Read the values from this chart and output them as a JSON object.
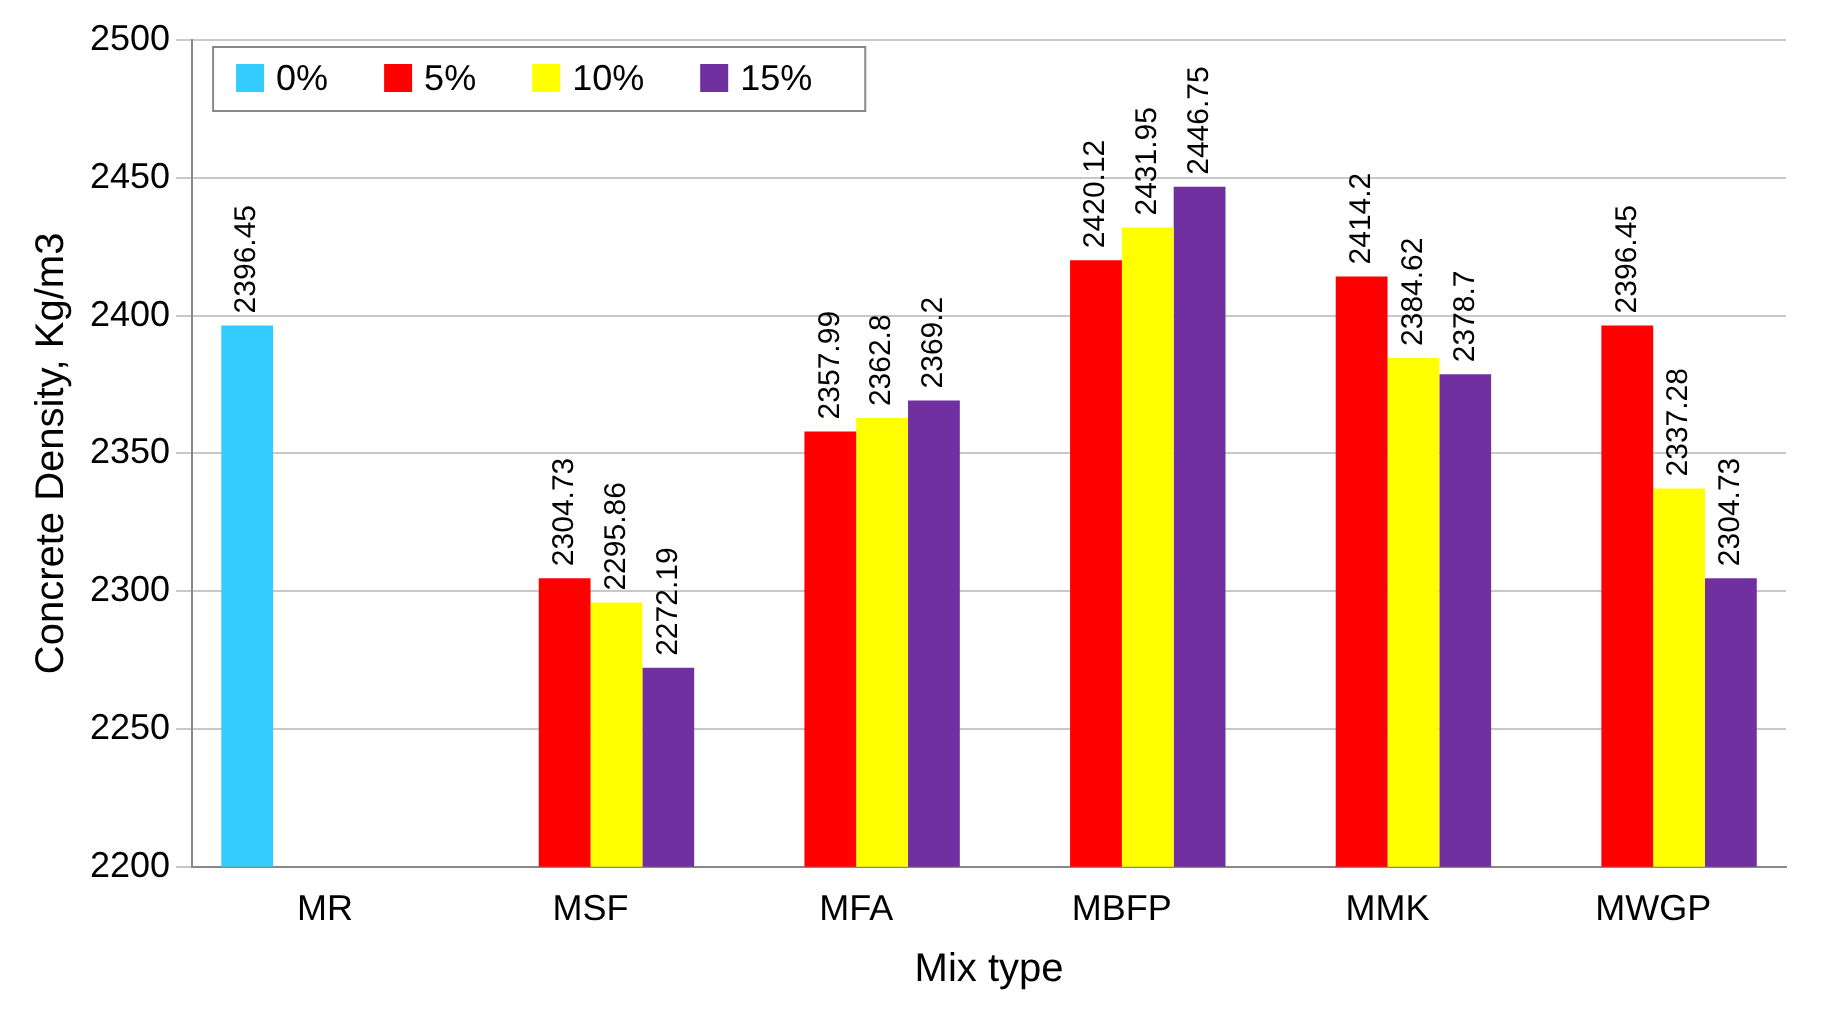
{
  "chart_data": {
    "type": "bar",
    "xlabel": "Mix type",
    "ylabel": "Concrete Density, Kg/m3",
    "categories": [
      "MR",
      "MSF",
      "MFA",
      "MBFP",
      "MMK",
      "MWGP"
    ],
    "series": [
      {
        "name": "0%",
        "color": "#33ccff",
        "values": [
          2396.45,
          null,
          null,
          null,
          null,
          null
        ]
      },
      {
        "name": "5%",
        "color": "#ff0000",
        "values": [
          null,
          2304.73,
          2357.99,
          2420.12,
          2414.2,
          2396.45
        ]
      },
      {
        "name": "10%",
        "color": "#ffff00",
        "values": [
          null,
          2295.86,
          2362.8,
          2431.95,
          2384.62,
          2337.28
        ]
      },
      {
        "name": "15%",
        "color": "#7030a0",
        "values": [
          null,
          2272.19,
          2369.2,
          2446.75,
          2378.7,
          2304.73
        ]
      }
    ],
    "ylim": [
      2200,
      2500
    ],
    "yticks": [
      2200,
      2250,
      2300,
      2350,
      2400,
      2450,
      2500
    ],
    "grid": "y",
    "legend": "top left",
    "data_labels": true
  }
}
